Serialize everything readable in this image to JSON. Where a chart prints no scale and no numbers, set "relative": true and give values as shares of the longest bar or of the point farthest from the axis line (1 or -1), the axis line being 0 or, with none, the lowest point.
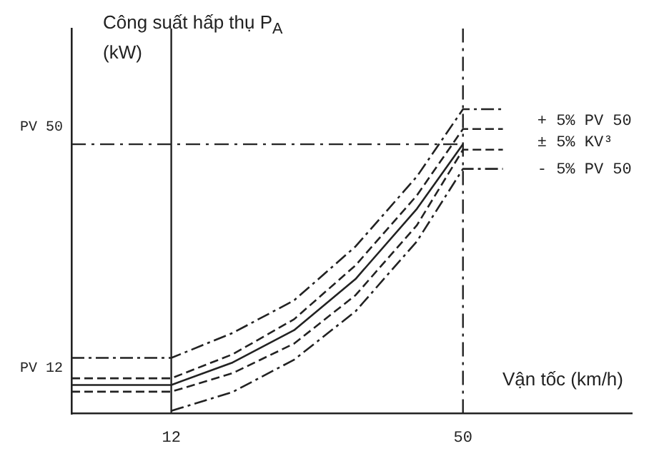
{
  "chart_data": {
    "type": "line",
    "relative": true,
    "ylabel": "Công suất hấp thụ P$_{A}$ (kW)",
    "xlabel": "Vận tốc (km/h)",
    "xlim": [
      -1,
      72
    ],
    "xticks": [
      12,
      50
    ],
    "tick_labels": "x",
    "grid": false,
    "legend": false,
    "marker": "none",
    "series": [
      {
        "color": "#222222",
        "line_style": "dashed",
        "x": [
          -1,
          12,
          20,
          28,
          36,
          44,
          50,
          55.2
        ],
        "values": [
          0.183,
          0.183,
          0.265,
          0.372,
          0.549,
          0.779,
          1,
          1
        ]
      },
      {
        "color": "#222222",
        "line_style": "dashed",
        "x": [
          -1,
          12,
          20,
          28,
          36,
          44,
          50,
          55.2
        ],
        "values": [
          0.116,
          0.116,
          0.195,
          0.31,
          0.487,
          0.717,
          0.935,
          0.935
        ]
      },
      {
        "color": "#222222",
        "line_style": "solid",
        "x": [
          -1,
          12,
          20,
          28,
          36,
          44,
          50
        ],
        "values": [
          0.094,
          0.094,
          0.168,
          0.274,
          0.442,
          0.673,
          0.885
        ]
      },
      {
        "color": "#222222",
        "line_style": "dashed",
        "x": [
          -1,
          12,
          20,
          28,
          36,
          44,
          50,
          55.2
        ],
        "values": [
          0.072,
          0.072,
          0.133,
          0.23,
          0.389,
          0.619,
          0.867,
          0.867
        ]
      },
      {
        "color": "#222222",
        "line_style": "dashed",
        "x": [
          12,
          20,
          28,
          36,
          44,
          50,
          55.2
        ],
        "values": [
          0.009,
          0.071,
          0.177,
          0.336,
          0.566,
          0.804,
          0.804
        ]
      }
    ],
    "ref_lines": [
      {
        "axis": "y",
        "value": 0.885,
        "label": "PV 50",
        "line_style": "dashed"
      },
      {
        "axis": "x",
        "value": 12,
        "line_style": "solid"
      },
      {
        "axis": "x",
        "value": 50,
        "line_style": "dashed"
      }
    ],
    "annotations": [
      "+ 5% PV 50",
      "± 5% KV³",
      "- 5% PV 50",
      "PV 12"
    ]
  }
}
